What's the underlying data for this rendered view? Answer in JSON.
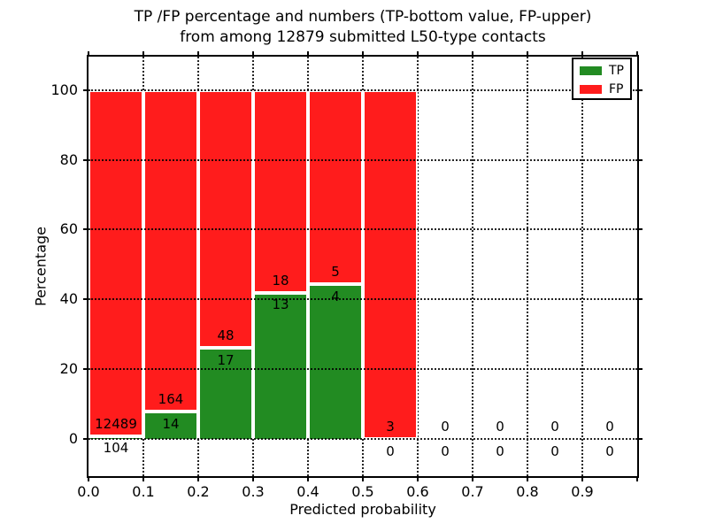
{
  "figure": {
    "title_line1": "TP /FP percentage and numbers (TP-bottom value, FP-upper)",
    "title_line2": "from among 12879 submitted L50-type contacts",
    "xlabel": "Predicted probability",
    "ylabel": "Percentage"
  },
  "legend": {
    "items": [
      {
        "label": "TP",
        "color": "#228B22"
      },
      {
        "label": "FP",
        "color": "#FF1C1C"
      }
    ]
  },
  "chart_data": {
    "type": "bar",
    "stacked": true,
    "title": "TP /FP percentage and numbers (TP-bottom value, FP-upper)\nfrom among 12879 submitted L50-type contacts",
    "xlabel": "Predicted probability",
    "ylabel": "Percentage",
    "total_submitted_contacts": 12879,
    "contact_type": "L50",
    "xlim": [
      0.0,
      1.0
    ],
    "ylim": [
      -10.7,
      109.6
    ],
    "x_tick_labels": [
      "0.0",
      "0.1",
      "0.2",
      "0.3",
      "0.4",
      "0.5",
      "0.6",
      "0.7",
      "0.8",
      "0.9"
    ],
    "y_tick_values": [
      0,
      20,
      40,
      60,
      80,
      100
    ],
    "grid": true,
    "legend_position": "upper right",
    "colors": {
      "tp": "#228B22",
      "fp": "#FF1C1C",
      "bar_edge": "#FFFFFF"
    },
    "annotation_offset_pct": 3.5,
    "bins": [
      {
        "range": [
          0.0,
          0.1
        ],
        "tp_count": 104,
        "fp_count": 12489,
        "tp_pct": 0.83,
        "fp_pct": 99.17
      },
      {
        "range": [
          0.1,
          0.2
        ],
        "tp_count": 14,
        "fp_count": 164,
        "tp_pct": 7.87,
        "fp_pct": 92.13
      },
      {
        "range": [
          0.2,
          0.3
        ],
        "tp_count": 17,
        "fp_count": 48,
        "tp_pct": 26.15,
        "fp_pct": 73.85
      },
      {
        "range": [
          0.3,
          0.4
        ],
        "tp_count": 13,
        "fp_count": 18,
        "tp_pct": 41.94,
        "fp_pct": 58.06
      },
      {
        "range": [
          0.4,
          0.5
        ],
        "tp_count": 4,
        "fp_count": 5,
        "tp_pct": 44.44,
        "fp_pct": 55.56
      },
      {
        "range": [
          0.5,
          0.6
        ],
        "tp_count": 0,
        "fp_count": 3,
        "tp_pct": 0.0,
        "fp_pct": 100.0
      },
      {
        "range": [
          0.6,
          0.7
        ],
        "tp_count": 0,
        "fp_count": 0,
        "tp_pct": 0.0,
        "fp_pct": 0.0
      },
      {
        "range": [
          0.7,
          0.8
        ],
        "tp_count": 0,
        "fp_count": 0,
        "tp_pct": 0.0,
        "fp_pct": 0.0
      },
      {
        "range": [
          0.8,
          0.9
        ],
        "tp_count": 0,
        "fp_count": 0,
        "tp_pct": 0.0,
        "fp_pct": 0.0
      },
      {
        "range": [
          0.9,
          1.0
        ],
        "tp_count": 0,
        "fp_count": 0,
        "tp_pct": 0.0,
        "fp_pct": 0.0
      }
    ]
  }
}
